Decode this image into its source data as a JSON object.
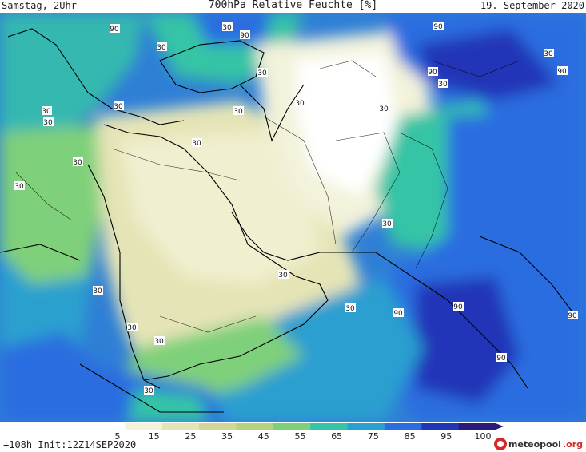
{
  "header": {
    "left": "Samstag, 2Uhr",
    "title": "700hPa Relative Feuchte [%]",
    "right": "19. September 2020"
  },
  "footer": {
    "init": "+108h Init:12Z14SEP2020",
    "logo_main": "meteopool",
    "logo_suffix": ".org"
  },
  "colorbar": {
    "ticks": [
      "5",
      "15",
      "25",
      "35",
      "45",
      "55",
      "65",
      "75",
      "85",
      "95",
      "100"
    ],
    "colors": [
      "#ffffff",
      "#f3f2da",
      "#e5e4b6",
      "#d3d696",
      "#b6d17f",
      "#7fd07a",
      "#35c4a6",
      "#2aa0cf",
      "#2a6de0",
      "#2236b8",
      "#2a1a7a"
    ]
  },
  "contour_labels": [
    {
      "text": "90"
    },
    {
      "text": "90"
    },
    {
      "text": "30"
    },
    {
      "text": "30"
    },
    {
      "text": "90"
    },
    {
      "text": "30"
    },
    {
      "text": "90"
    },
    {
      "text": "30"
    },
    {
      "text": "90"
    },
    {
      "text": "30"
    },
    {
      "text": "30"
    },
    {
      "text": "30"
    },
    {
      "text": "30"
    },
    {
      "text": "30"
    },
    {
      "text": "30"
    },
    {
      "text": "30"
    },
    {
      "text": "30"
    },
    {
      "text": "30"
    },
    {
      "text": "30"
    },
    {
      "text": "30"
    },
    {
      "text": "30"
    },
    {
      "text": "30"
    },
    {
      "text": "30"
    },
    {
      "text": "30"
    },
    {
      "text": "90"
    },
    {
      "text": "90"
    },
    {
      "text": "90"
    },
    {
      "text": "90"
    },
    {
      "text": "30"
    },
    {
      "text": "30"
    }
  ]
}
